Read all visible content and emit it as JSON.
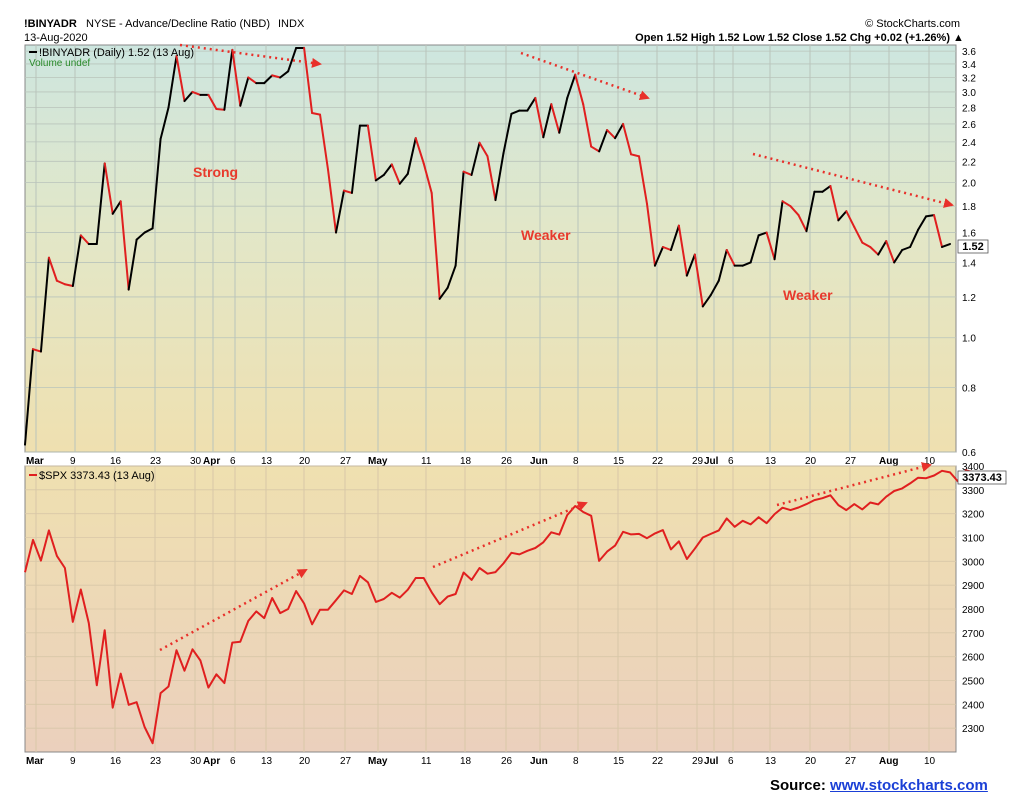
{
  "header": {
    "symbol": "!BINYADR",
    "description": "NYSE - Advance/Decline Ratio (NBD)",
    "exchange": "INDX",
    "date": "13-Aug-2020",
    "brand": "© StockCharts.com",
    "ohlc_text": "Open 1.52  High 1.52  Low 1.52  Close 1.52  Chg +0.02 (+1.26%)",
    "ohlc_arrow": "▲"
  },
  "colors": {
    "upper_line_up": "#000000",
    "upper_line_down": "#e01f1f",
    "spx_line": "#e01f1f",
    "annotation": "#e83a2c",
    "trend_arrow": "#e8302a"
  },
  "chart_data": [
    {
      "type": "line",
      "title": "!BINYADR (Daily) 1.52 (13 Aug)",
      "legend": [
        "!BINYADR (Daily) 1.52 (13 Aug)",
        "Volume undef"
      ],
      "last_value_label": "1.52",
      "y_scale": "log",
      "ylim": [
        0.6,
        3.7
      ],
      "y_ticks": [
        0.6,
        0.8,
        1.0,
        1.2,
        1.4,
        1.6,
        1.8,
        2.0,
        2.2,
        2.4,
        2.6,
        2.8,
        3.0,
        3.2,
        3.4,
        3.6
      ],
      "y_tick_labels": [
        "0.6",
        "0.8",
        "1.0",
        "1.2",
        "1.4",
        "1.6",
        "1.8",
        "2.0",
        "2.2",
        "2.4",
        "2.6",
        "2.8",
        "3.0",
        "3.2",
        "3.4",
        "3.6"
      ],
      "grid": true,
      "series": [
        {
          "values": [
            0.62,
            0.95,
            0.94,
            1.43,
            1.29,
            1.27,
            1.26,
            1.58,
            1.52,
            1.52,
            2.18,
            1.74,
            1.84,
            1.24,
            1.55,
            1.6,
            1.63,
            2.43,
            2.8,
            3.52,
            2.88,
            3.0,
            2.96,
            2.96,
            2.78,
            2.77,
            3.62,
            2.82,
            3.2,
            3.12,
            3.12,
            3.23,
            3.2,
            3.29,
            3.65,
            3.65,
            2.73,
            2.71,
            2.12,
            1.6,
            1.93,
            1.91,
            2.58,
            2.58,
            2.02,
            2.07,
            2.17,
            1.99,
            2.08,
            2.44,
            2.18,
            1.91,
            1.19,
            1.25,
            1.38,
            2.1,
            2.07,
            2.39,
            2.25,
            1.85,
            2.28,
            2.72,
            2.76,
            2.76,
            2.92,
            2.45,
            2.84,
            2.5,
            2.92,
            3.24,
            2.84,
            2.35,
            2.3,
            2.53,
            2.44,
            2.6,
            2.27,
            2.25,
            1.82,
            1.38,
            1.5,
            1.48,
            1.65,
            1.32,
            1.45,
            1.15,
            1.21,
            1.29,
            1.48,
            1.38,
            1.38,
            1.4,
            1.58,
            1.6,
            1.42,
            1.84,
            1.8,
            1.73,
            1.61,
            1.92,
            1.92,
            1.97,
            1.69,
            1.76,
            1.64,
            1.53,
            1.5,
            1.45,
            1.54,
            1.4,
            1.48,
            1.5,
            1.62,
            1.72,
            1.73,
            1.5,
            1.52
          ]
        }
      ],
      "annotations": [
        "Strong",
        "Weaker",
        "Weaker"
      ]
    },
    {
      "type": "line",
      "title": "$SPX 3373.43 (13 Aug)",
      "legend": [
        "$SPX 3373.43 (13 Aug)"
      ],
      "last_value_label": "3373.43",
      "ylim": [
        2200,
        3400
      ],
      "y_ticks": [
        2300,
        2400,
        2500,
        2600,
        2700,
        2800,
        2900,
        3000,
        3100,
        3200,
        3300,
        3400
      ],
      "y_tick_labels": [
        "2300",
        "2400",
        "2500",
        "2600",
        "2700",
        "2800",
        "2900",
        "3000",
        "3100",
        "3200",
        "3300",
        "3400"
      ],
      "grid": true,
      "series": [
        {
          "values": [
            2954,
            3090,
            3003,
            3130,
            3023,
            2972,
            2746,
            2882,
            2741,
            2480,
            2711,
            2386,
            2529,
            2398,
            2409,
            2305,
            2237,
            2447,
            2475,
            2627,
            2541,
            2631,
            2584,
            2470,
            2526,
            2489,
            2659,
            2663,
            2750,
            2790,
            2762,
            2846,
            2783,
            2800,
            2875,
            2823,
            2736,
            2797,
            2797,
            2837,
            2878,
            2863,
            2939,
            2912,
            2830,
            2842,
            2868,
            2848,
            2881,
            2930,
            2930,
            2870,
            2820,
            2852,
            2863,
            2953,
            2922,
            2972,
            2948,
            2955,
            2991,
            3036,
            3029,
            3044,
            3056,
            3080,
            3122,
            3112,
            3194,
            3232,
            3207,
            3191,
            3002,
            3041,
            3066,
            3124,
            3113,
            3115,
            3097,
            3117,
            3131,
            3050,
            3084,
            3010,
            3053,
            3100,
            3115,
            3130,
            3180,
            3145,
            3170,
            3155,
            3185,
            3160,
            3198,
            3225,
            3215,
            3226,
            3240,
            3257,
            3265,
            3277,
            3236,
            3215,
            3240,
            3218,
            3247,
            3239,
            3271,
            3295,
            3306,
            3327,
            3351,
            3349,
            3360,
            3380,
            3373,
            3335,
            3382,
            3373
          ]
        }
      ]
    }
  ],
  "x_axis": {
    "labels": [
      "Mar",
      "9",
      "16",
      "23",
      "30",
      "Apr",
      "6",
      "13",
      "20",
      "27",
      "May",
      "11",
      "18",
      "26",
      "Jun",
      "8",
      "15",
      "22",
      "29",
      "Jul",
      "6",
      "13",
      "20",
      "27",
      "Aug",
      "10"
    ]
  },
  "source": {
    "label": "Source:",
    "link_text": "www.stockcharts.com"
  }
}
